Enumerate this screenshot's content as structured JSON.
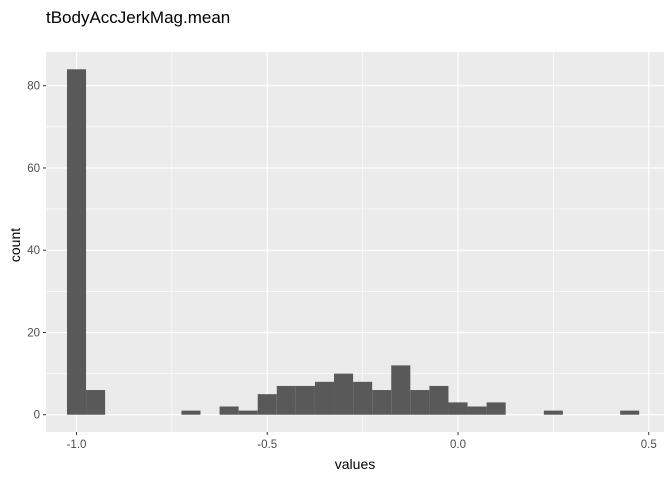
{
  "chart_data": {
    "type": "bar",
    "title": "tBodyAccJerkMag.mean",
    "xlabel": "values",
    "ylabel": "count",
    "xlim": [
      -1.08,
      0.54
    ],
    "ylim": [
      -4.2,
      88.2
    ],
    "x_ticks": [
      {
        "value": -1.0,
        "label": "-1.0"
      },
      {
        "value": -0.5,
        "label": "-0.5"
      },
      {
        "value": 0.0,
        "label": "0.0"
      },
      {
        "value": 0.5,
        "label": "0.5"
      }
    ],
    "y_ticks": [
      {
        "value": 0,
        "label": "0"
      },
      {
        "value": 20,
        "label": "20"
      },
      {
        "value": 40,
        "label": "40"
      },
      {
        "value": 60,
        "label": "60"
      },
      {
        "value": 80,
        "label": "80"
      }
    ],
    "bin_width": 0.05,
    "bins": [
      {
        "x_start": -1.025,
        "count": 84
      },
      {
        "x_start": -0.975,
        "count": 6
      },
      {
        "x_start": -0.725,
        "count": 1
      },
      {
        "x_start": -0.625,
        "count": 2
      },
      {
        "x_start": -0.575,
        "count": 1
      },
      {
        "x_start": -0.525,
        "count": 5
      },
      {
        "x_start": -0.475,
        "count": 7
      },
      {
        "x_start": -0.425,
        "count": 7
      },
      {
        "x_start": -0.375,
        "count": 8
      },
      {
        "x_start": -0.325,
        "count": 10
      },
      {
        "x_start": -0.275,
        "count": 8
      },
      {
        "x_start": -0.225,
        "count": 6
      },
      {
        "x_start": -0.175,
        "count": 12
      },
      {
        "x_start": -0.125,
        "count": 6
      },
      {
        "x_start": -0.075,
        "count": 7
      },
      {
        "x_start": -0.025,
        "count": 3
      },
      {
        "x_start": 0.025,
        "count": 2
      },
      {
        "x_start": 0.075,
        "count": 3
      },
      {
        "x_start": 0.225,
        "count": 1
      },
      {
        "x_start": 0.425,
        "count": 1
      }
    ],
    "grid": true,
    "legend": "none",
    "colors": {
      "panel": "#ebebeb",
      "grid": "#ffffff",
      "bar": "#595959",
      "tick": "#333333"
    }
  }
}
